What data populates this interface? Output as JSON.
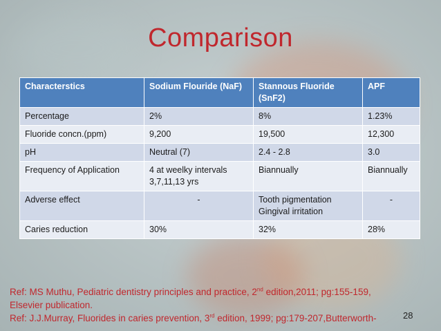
{
  "title": "Comparison",
  "table": {
    "headers": [
      "Characterstics",
      "Sodium Flouride (NaF)",
      "Stannous Fluoride (SnF2)",
      "APF"
    ],
    "rows": [
      [
        "Percentage",
        "2%",
        "8%",
        "1.23%"
      ],
      [
        "Fluoride concn.(ppm)",
        "9,200",
        "19,500",
        "12,300"
      ],
      [
        "pH",
        "Neutral (7)",
        "2.4 - 2.8",
        "3.0"
      ],
      [
        "Frequency of Application",
        "4 at weelky intervals 3,7,11,13 yrs",
        "Biannually",
        "Biannually"
      ],
      [
        "Adverse effect",
        "-",
        "Tooth pigmentation Gingival irritation",
        "-"
      ],
      [
        "Caries reduction",
        "30%",
        "32%",
        "28%"
      ]
    ]
  },
  "references": {
    "ref1_a": "Ref: MS Muthu, Pediatric dentistry principles and practice, 2",
    "ref1_sup": "nd",
    "ref1_b": " edition,2011; pg:155-159,",
    "ref1_c": "Elsevier publication.",
    "ref2_a": "Ref: J.J.Murray, Fluorides in caries prevention, 3",
    "ref2_sup": "rd",
    "ref2_b": " edition, 1999; pg:179-207,Butterworth-"
  },
  "page_number": "28"
}
